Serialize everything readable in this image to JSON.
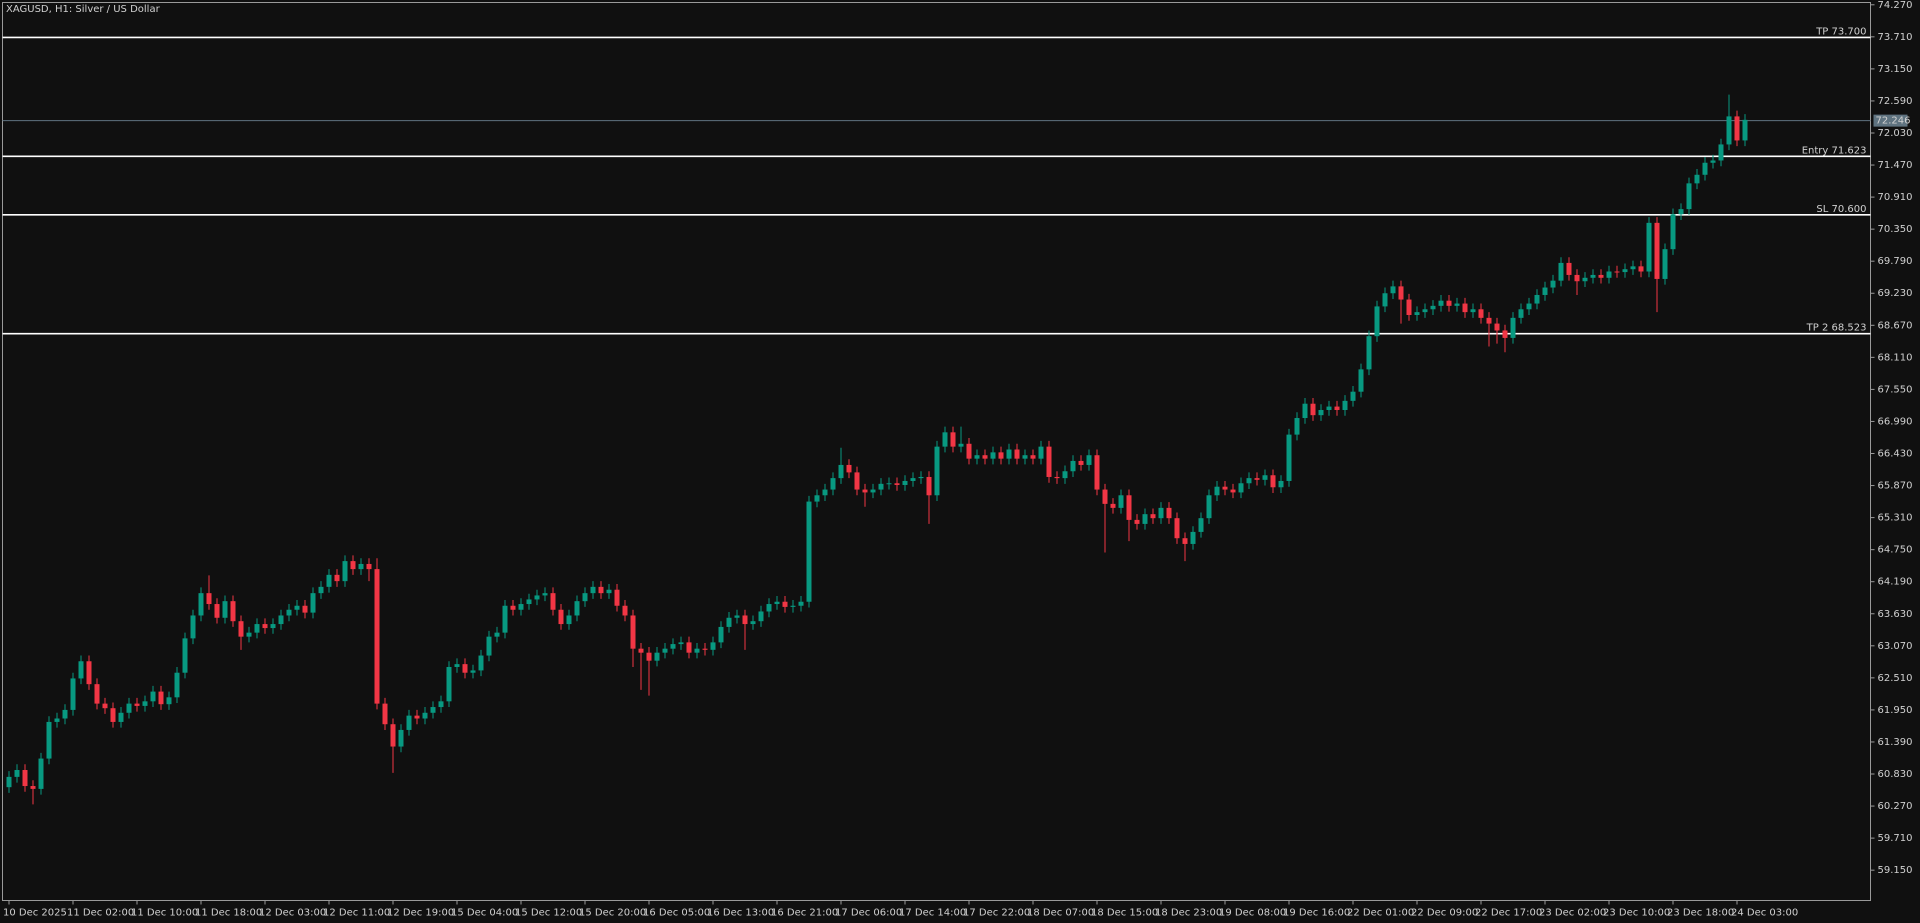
{
  "chart_data": {
    "type": "candlestick",
    "title": "XAGUSD, H1:  Silver / US Dollar",
    "up_color": "#089981",
    "down_color": "#f23645",
    "level_color": "#ffffff",
    "last_color": "#5f7380",
    "background": "#101010",
    "grid": false,
    "ylim": [
      58.62,
      74.31
    ],
    "yticks": [
      {
        "value": 74.27,
        "label": "74.270"
      },
      {
        "value": 73.71,
        "label": "73.710"
      },
      {
        "value": 73.15,
        "label": "73.150"
      },
      {
        "value": 72.59,
        "label": "72.590"
      },
      {
        "value": 72.03,
        "label": "72.030"
      },
      {
        "value": 71.47,
        "label": "71.470"
      },
      {
        "value": 70.91,
        "label": "70.910"
      },
      {
        "value": 70.35,
        "label": "70.350"
      },
      {
        "value": 69.79,
        "label": "69.790"
      },
      {
        "value": 69.23,
        "label": "69.230"
      },
      {
        "value": 68.67,
        "label": "68.670"
      },
      {
        "value": 68.11,
        "label": "68.110"
      },
      {
        "value": 67.55,
        "label": "67.550"
      },
      {
        "value": 66.99,
        "label": "66.990"
      },
      {
        "value": 66.43,
        "label": "66.430"
      },
      {
        "value": 65.87,
        "label": "65.870"
      },
      {
        "value": 65.31,
        "label": "65.310"
      },
      {
        "value": 64.75,
        "label": "64.750"
      },
      {
        "value": 64.19,
        "label": "64.190"
      },
      {
        "value": 63.63,
        "label": "63.630"
      },
      {
        "value": 63.07,
        "label": "63.070"
      },
      {
        "value": 62.51,
        "label": "62.510"
      },
      {
        "value": 61.95,
        "label": "61.950"
      },
      {
        "value": 61.39,
        "label": "61.390"
      },
      {
        "value": 60.83,
        "label": "60.830"
      },
      {
        "value": 60.27,
        "label": "60.270"
      },
      {
        "value": 59.71,
        "label": "59.710"
      },
      {
        "value": 59.15,
        "label": "59.150"
      }
    ],
    "levels": [
      {
        "value": 73.7,
        "label": "TP 73.700"
      },
      {
        "value": 71.623,
        "label": "Entry 71.623"
      },
      {
        "value": 70.6,
        "label": "SL 70.600"
      },
      {
        "value": 68.523,
        "label": "TP 2 68.523"
      }
    ],
    "last_price": 72.246,
    "categories": [
      "10 Dec 2025",
      null,
      null,
      null,
      null,
      null,
      null,
      null,
      "11 Dec 02:00",
      null,
      null,
      null,
      null,
      null,
      null,
      null,
      "11 Dec 10:00",
      null,
      null,
      null,
      null,
      null,
      null,
      null,
      "11 Dec 18:00",
      null,
      null,
      null,
      null,
      null,
      null,
      null,
      "12 Dec 03:00",
      null,
      null,
      null,
      null,
      null,
      null,
      null,
      "12 Dec 11:00",
      null,
      null,
      null,
      null,
      null,
      null,
      null,
      "12 Dec 19:00",
      null,
      null,
      null,
      null,
      null,
      null,
      null,
      "15 Dec 04:00",
      null,
      null,
      null,
      null,
      null,
      null,
      null,
      "15 Dec 12:00",
      null,
      null,
      null,
      null,
      null,
      null,
      null,
      "15 Dec 20:00",
      null,
      null,
      null,
      null,
      null,
      null,
      null,
      "16 Dec 05:00",
      null,
      null,
      null,
      null,
      null,
      null,
      null,
      "16 Dec 13:00",
      null,
      null,
      null,
      null,
      null,
      null,
      null,
      "16 Dec 21:00",
      null,
      null,
      null,
      null,
      null,
      null,
      null,
      "17 Dec 06:00",
      null,
      null,
      null,
      null,
      null,
      null,
      null,
      "17 Dec 14:00",
      null,
      null,
      null,
      null,
      null,
      null,
      null,
      "17 Dec 22:00",
      null,
      null,
      null,
      null,
      null,
      null,
      null,
      "18 Dec 07:00",
      null,
      null,
      null,
      null,
      null,
      null,
      null,
      "18 Dec 15:00",
      null,
      null,
      null,
      null,
      null,
      null,
      null,
      "18 Dec 23:00",
      null,
      null,
      null,
      null,
      null,
      null,
      null,
      "19 Dec 08:00",
      null,
      null,
      null,
      null,
      null,
      null,
      null,
      "19 Dec 16:00",
      null,
      null,
      null,
      null,
      null,
      null,
      null,
      "22 Dec 01:00",
      null,
      null,
      null,
      null,
      null,
      null,
      null,
      "22 Dec 09:00",
      null,
      null,
      null,
      null,
      null,
      null,
      null,
      "22 Dec 17:00",
      null,
      null,
      null,
      null,
      null,
      null,
      null,
      "23 Dec 02:00",
      null,
      null,
      null,
      null,
      null,
      null,
      null,
      "23 Dec 10:00",
      null,
      null,
      null,
      null,
      null,
      null,
      null,
      "23 Dec 18:00",
      null,
      null,
      null,
      null,
      null,
      null,
      null,
      "24 Dec 03:00",
      null
    ],
    "ohlc": {
      "open": [
        60.6,
        60.78,
        60.9,
        60.62,
        60.57,
        61.1,
        61.74,
        61.8,
        61.95,
        62.5,
        62.8,
        62.4,
        62.06,
        61.98,
        61.74,
        61.9,
        62.06,
        62.02,
        62.1,
        62.27,
        62.05,
        62.17,
        62.6,
        63.2,
        63.6,
        63.99,
        63.8,
        63.56,
        63.85,
        63.5,
        63.23,
        63.3,
        63.45,
        63.38,
        63.45,
        63.6,
        63.7,
        63.77,
        63.65,
        63.99,
        64.1,
        64.31,
        64.2,
        64.55,
        64.41,
        64.5,
        64.41,
        62.06,
        61.7,
        61.31,
        61.6,
        61.85,
        61.8,
        61.9,
        62.0,
        62.1,
        62.7,
        62.75,
        62.6,
        62.64,
        62.9,
        63.23,
        63.3,
        63.77,
        63.7,
        63.8,
        63.88,
        63.95,
        63.99,
        63.7,
        63.45,
        63.6,
        63.85,
        63.99,
        64.1,
        63.99,
        64.05,
        63.77,
        63.6,
        63.02,
        62.95,
        62.81,
        62.95,
        63.02,
        63.1,
        63.13,
        62.95,
        63.02,
        63.0,
        63.13,
        63.4,
        63.56,
        63.6,
        63.45,
        63.5,
        63.67,
        63.8,
        63.84,
        63.75,
        63.77,
        63.84,
        65.59,
        65.7,
        65.8,
        66.0,
        66.23,
        66.1,
        65.8,
        65.75,
        65.8,
        65.9,
        65.91,
        65.88,
        65.95,
        66.0,
        66.02,
        65.7,
        66.55,
        66.8,
        66.55,
        66.6,
        66.34,
        66.4,
        66.34,
        66.45,
        66.34,
        66.5,
        66.34,
        66.4,
        66.34,
        66.55,
        66.02,
        66.0,
        66.12,
        66.3,
        66.23,
        66.4,
        65.8,
        65.55,
        65.48,
        65.7,
        65.27,
        65.2,
        65.37,
        65.3,
        65.48,
        65.3,
        64.95,
        64.85,
        65.06,
        65.3,
        65.7,
        65.85,
        65.8,
        65.75,
        65.91,
        66.0,
        65.97,
        66.05,
        65.84,
        65.95,
        66.76,
        67.05,
        67.3,
        67.1,
        67.19,
        67.25,
        67.19,
        67.35,
        67.51,
        67.9,
        68.48,
        69.0,
        69.23,
        69.35,
        69.12,
        68.85,
        68.9,
        68.95,
        69.01,
        69.1,
        69.01,
        69.05,
        68.9,
        68.95,
        68.8,
        68.7,
        68.58,
        68.45,
        68.8,
        68.95,
        69.05,
        69.2,
        69.33,
        69.45,
        69.76,
        69.55,
        69.44,
        69.5,
        69.55,
        69.5,
        69.61,
        69.6,
        69.65,
        69.7,
        69.61,
        70.46,
        69.48,
        70.0,
        70.61,
        70.7,
        71.15,
        71.3,
        71.51,
        71.55,
        71.83,
        72.32,
        71.9
      ],
      "high": [
        60.88,
        61.0,
        61.0,
        60.72,
        61.2,
        61.84,
        61.9,
        62.05,
        62.6,
        62.9,
        62.9,
        62.5,
        62.16,
        62.08,
        62.0,
        62.16,
        62.16,
        62.2,
        62.37,
        62.37,
        62.27,
        62.7,
        63.3,
        63.7,
        64.09,
        64.3,
        63.9,
        63.95,
        63.95,
        63.6,
        63.4,
        63.55,
        63.55,
        63.55,
        63.7,
        63.8,
        63.87,
        63.87,
        64.09,
        64.2,
        64.41,
        64.41,
        64.65,
        64.65,
        64.6,
        64.6,
        64.6,
        62.16,
        61.8,
        61.7,
        61.95,
        61.95,
        62.0,
        62.1,
        62.2,
        62.8,
        62.85,
        62.85,
        62.74,
        63.0,
        63.33,
        63.4,
        63.87,
        63.87,
        63.9,
        63.98,
        64.05,
        64.09,
        64.09,
        63.8,
        63.7,
        63.95,
        64.09,
        64.2,
        64.2,
        64.15,
        64.15,
        63.87,
        63.7,
        63.12,
        63.05,
        63.05,
        63.12,
        63.2,
        63.23,
        63.23,
        63.12,
        63.12,
        63.23,
        63.5,
        63.66,
        63.7,
        63.7,
        63.6,
        63.77,
        63.9,
        63.94,
        63.94,
        63.87,
        63.94,
        65.69,
        65.8,
        65.9,
        66.1,
        66.53,
        66.33,
        66.2,
        65.9,
        65.9,
        66.0,
        66.01,
        66.01,
        66.05,
        66.1,
        66.12,
        66.12,
        66.65,
        66.9,
        66.9,
        66.9,
        66.7,
        66.5,
        66.5,
        66.55,
        66.55,
        66.6,
        66.6,
        66.5,
        66.5,
        66.65,
        66.65,
        66.12,
        66.22,
        66.4,
        66.4,
        66.5,
        66.5,
        65.9,
        65.65,
        65.8,
        65.8,
        65.37,
        65.47,
        65.47,
        65.58,
        65.58,
        65.4,
        65.05,
        65.16,
        65.4,
        65.8,
        65.95,
        65.95,
        65.9,
        66.01,
        66.1,
        66.1,
        66.15,
        66.15,
        66.05,
        66.86,
        67.15,
        67.4,
        67.4,
        67.29,
        67.35,
        67.35,
        67.45,
        67.61,
        68.0,
        68.58,
        69.1,
        69.33,
        69.45,
        69.45,
        69.22,
        69.0,
        69.05,
        69.11,
        69.2,
        69.2,
        69.15,
        69.15,
        69.05,
        69.05,
        68.9,
        68.8,
        68.68,
        68.9,
        69.05,
        69.15,
        69.3,
        69.43,
        69.55,
        69.86,
        69.86,
        69.65,
        69.6,
        69.65,
        69.65,
        69.71,
        69.71,
        69.75,
        69.8,
        69.8,
        70.56,
        70.56,
        70.1,
        70.71,
        70.8,
        71.25,
        71.4,
        71.61,
        71.65,
        71.93,
        72.7,
        72.42,
        72.36
      ],
      "low": [
        60.5,
        60.68,
        60.52,
        60.3,
        60.47,
        61.0,
        61.64,
        61.7,
        61.85,
        62.4,
        62.3,
        61.96,
        61.88,
        61.64,
        61.64,
        61.8,
        61.92,
        61.92,
        62.0,
        61.95,
        61.95,
        62.07,
        62.5,
        63.1,
        63.5,
        63.7,
        63.46,
        63.46,
        63.4,
        63.0,
        63.13,
        63.2,
        63.28,
        63.28,
        63.35,
        63.5,
        63.6,
        63.55,
        63.55,
        63.89,
        64.0,
        64.1,
        64.1,
        64.31,
        64.31,
        64.2,
        61.96,
        61.6,
        60.85,
        61.21,
        61.5,
        61.7,
        61.7,
        61.8,
        61.9,
        62.0,
        62.6,
        62.5,
        62.5,
        62.54,
        62.8,
        63.13,
        63.2,
        63.6,
        63.6,
        63.7,
        63.78,
        63.85,
        63.6,
        63.35,
        63.35,
        63.5,
        63.75,
        63.89,
        63.89,
        63.89,
        63.67,
        63.5,
        62.7,
        62.3,
        62.2,
        62.71,
        62.85,
        62.92,
        63.0,
        62.85,
        62.85,
        62.9,
        62.9,
        63.03,
        63.3,
        63.46,
        63.0,
        63.35,
        63.4,
        63.57,
        63.7,
        63.65,
        63.65,
        63.67,
        63.74,
        65.49,
        65.6,
        65.7,
        65.9,
        66.0,
        65.7,
        65.5,
        65.65,
        65.7,
        65.8,
        65.78,
        65.78,
        65.85,
        65.9,
        65.2,
        65.6,
        66.45,
        66.45,
        66.45,
        66.24,
        66.24,
        66.24,
        66.24,
        66.24,
        66.24,
        66.24,
        66.24,
        66.24,
        66.24,
        65.92,
        65.9,
        65.9,
        66.02,
        66.13,
        66.13,
        65.7,
        64.7,
        65.38,
        65.38,
        64.9,
        65.1,
        65.1,
        65.2,
        65.2,
        65.2,
        64.85,
        64.55,
        64.75,
        64.96,
        65.2,
        65.6,
        65.7,
        65.65,
        65.65,
        65.81,
        65.87,
        65.87,
        65.74,
        65.74,
        65.85,
        66.66,
        66.95,
        67.0,
        67.0,
        67.09,
        67.09,
        67.09,
        67.25,
        67.41,
        67.8,
        68.38,
        68.9,
        69.13,
        68.7,
        68.75,
        68.75,
        68.8,
        68.85,
        68.91,
        68.91,
        68.91,
        68.8,
        68.8,
        68.7,
        68.3,
        68.35,
        68.2,
        68.35,
        68.7,
        68.85,
        68.95,
        69.1,
        69.23,
        69.35,
        69.45,
        69.2,
        69.34,
        69.4,
        69.4,
        69.4,
        69.5,
        69.5,
        69.55,
        69.51,
        69.51,
        68.9,
        69.38,
        69.9,
        70.51,
        70.6,
        71.05,
        71.2,
        71.41,
        71.45,
        71.73,
        71.8,
        71.8
      ],
      "close": [
        60.78,
        60.9,
        60.62,
        60.57,
        61.1,
        61.74,
        61.8,
        61.95,
        62.5,
        62.8,
        62.4,
        62.06,
        61.98,
        61.74,
        61.9,
        62.06,
        62.02,
        62.1,
        62.27,
        62.05,
        62.17,
        62.6,
        63.2,
        63.6,
        63.99,
        63.8,
        63.56,
        63.85,
        63.5,
        63.23,
        63.3,
        63.45,
        63.38,
        63.45,
        63.6,
        63.7,
        63.77,
        63.65,
        63.99,
        64.1,
        64.31,
        64.2,
        64.55,
        64.41,
        64.5,
        64.41,
        62.06,
        61.7,
        61.31,
        61.6,
        61.85,
        61.8,
        61.9,
        62.0,
        62.1,
        62.7,
        62.75,
        62.6,
        62.64,
        62.9,
        63.23,
        63.3,
        63.77,
        63.7,
        63.8,
        63.88,
        63.95,
        63.99,
        63.7,
        63.45,
        63.6,
        63.85,
        63.99,
        64.1,
        63.99,
        64.05,
        63.77,
        63.6,
        63.02,
        62.95,
        62.81,
        62.95,
        63.02,
        63.1,
        63.13,
        62.95,
        63.02,
        63.0,
        63.13,
        63.4,
        63.56,
        63.6,
        63.45,
        63.5,
        63.67,
        63.8,
        63.84,
        63.75,
        63.77,
        63.84,
        65.59,
        65.7,
        65.8,
        66.0,
        66.23,
        66.1,
        65.8,
        65.75,
        65.8,
        65.9,
        65.91,
        65.88,
        65.95,
        66.0,
        66.02,
        65.7,
        66.55,
        66.8,
        66.55,
        66.6,
        66.34,
        66.4,
        66.34,
        66.45,
        66.34,
        66.5,
        66.34,
        66.4,
        66.34,
        66.55,
        66.02,
        66.0,
        66.12,
        66.3,
        66.23,
        66.4,
        65.8,
        65.55,
        65.48,
        65.7,
        65.27,
        65.2,
        65.37,
        65.3,
        65.48,
        65.3,
        64.95,
        64.85,
        65.06,
        65.3,
        65.7,
        65.85,
        65.8,
        65.75,
        65.91,
        66.0,
        65.97,
        66.05,
        65.84,
        65.95,
        66.76,
        67.05,
        67.3,
        67.1,
        67.19,
        67.25,
        67.19,
        67.35,
        67.51,
        67.9,
        68.48,
        69.0,
        69.23,
        69.35,
        69.12,
        68.85,
        68.9,
        68.95,
        69.01,
        69.1,
        69.01,
        69.05,
        68.9,
        68.95,
        68.8,
        68.7,
        68.58,
        68.45,
        68.8,
        68.95,
        69.05,
        69.2,
        69.33,
        69.45,
        69.76,
        69.55,
        69.44,
        69.5,
        69.55,
        69.5,
        69.61,
        69.6,
        69.65,
        69.7,
        69.61,
        70.46,
        69.48,
        70.0,
        70.61,
        70.7,
        71.15,
        71.3,
        71.51,
        71.55,
        71.83,
        72.32,
        71.9,
        72.26
      ]
    }
  }
}
